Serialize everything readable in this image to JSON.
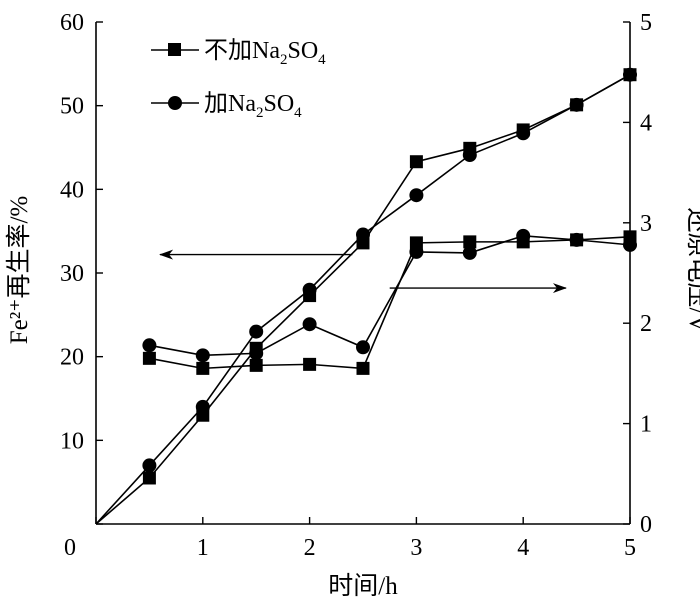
{
  "chart_data": {
    "type": "line",
    "xlabel": "时间/h",
    "ylabel_left": "Fe²⁺再生率/%",
    "ylabel_right": "还原电压/V",
    "xlim": [
      0,
      5
    ],
    "ylim_left": [
      0,
      60
    ],
    "ylim_right": [
      0,
      5
    ],
    "x_ticks": [
      "0",
      "1",
      "2",
      "3",
      "4",
      "5"
    ],
    "y_left_ticks": [
      "0",
      "10",
      "20",
      "30",
      "40",
      "50",
      "60"
    ],
    "y_right_ticks": [
      "0",
      "1",
      "2",
      "3",
      "4",
      "5"
    ],
    "grid": false,
    "legend_position": "top-left",
    "legend": [
      {
        "series": "no_na2so4",
        "marker": "square",
        "prefix": "不加Na",
        "sub1": "2",
        "mid": "SO",
        "sub2": "4"
      },
      {
        "series": "with_na2so4",
        "marker": "circle",
        "prefix": "加Na",
        "sub1": "2",
        "mid": "SO",
        "sub2": "4"
      }
    ],
    "series": [
      {
        "id": "no_na2so4",
        "marker": "square",
        "axis": "left",
        "x": [
          0,
          0.5,
          1.0,
          1.5,
          2.0,
          2.5,
          3.0,
          3.5,
          4.0,
          4.5,
          5.0
        ],
        "y": [
          0,
          5.5,
          13.0,
          21.0,
          27.3,
          33.6,
          43.3,
          44.9,
          47.1,
          50.1,
          53.7
        ]
      },
      {
        "id": "with_na2so4",
        "marker": "circle",
        "axis": "left",
        "x": [
          0,
          0.5,
          1.0,
          1.5,
          2.0,
          2.5,
          3.0,
          3.5,
          4.0,
          4.5,
          5.0
        ],
        "y": [
          0,
          7.0,
          14.0,
          23.0,
          28.0,
          34.6,
          39.3,
          44.1,
          46.7,
          50.1,
          53.7
        ]
      },
      {
        "id": "no_na2so4_voltage",
        "marker": "square",
        "axis": "right",
        "x": [
          0.5,
          1.0,
          1.5,
          2.0,
          2.5,
          3.0,
          3.5,
          4.0,
          4.5,
          5.0
        ],
        "y": [
          1.65,
          1.55,
          1.58,
          1.59,
          1.55,
          2.8,
          2.81,
          2.81,
          2.83,
          2.86
        ]
      },
      {
        "id": "with_na2so4_voltage",
        "marker": "circle",
        "axis": "right",
        "x": [
          0.5,
          1.0,
          1.5,
          2.0,
          2.5,
          3.0,
          3.5,
          4.0,
          4.5,
          5.0
        ],
        "y": [
          1.78,
          1.68,
          1.7,
          1.99,
          1.76,
          2.71,
          2.7,
          2.87,
          2.83,
          2.78
        ]
      }
    ],
    "annotations": [
      {
        "type": "arrow",
        "direction": "left",
        "x_from": 2.4,
        "x_to": 0.6,
        "y": 32.2,
        "axis": "left"
      },
      {
        "type": "arrow",
        "direction": "right",
        "x_from": 2.75,
        "x_to": 4.4,
        "y": 28.2,
        "axis": "left"
      }
    ]
  }
}
